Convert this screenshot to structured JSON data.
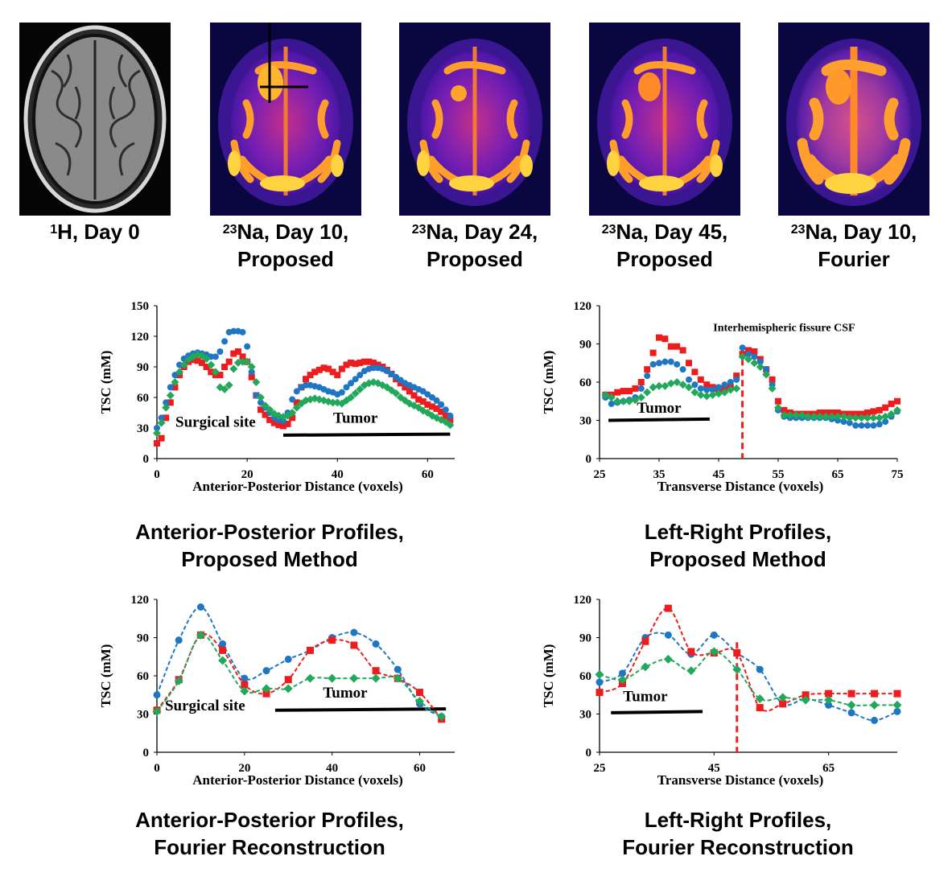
{
  "images": [
    {
      "nucleus": "1",
      "rest": "H, Day 0",
      "line2": ""
    },
    {
      "nucleus": "23",
      "rest": "Na, Day 10,",
      "line2": "Proposed"
    },
    {
      "nucleus": "23",
      "rest": "Na, Day 24,",
      "line2": "Proposed"
    },
    {
      "nucleus": "23",
      "rest": "Na, Day 45,",
      "line2": "Proposed"
    },
    {
      "nucleus": "23",
      "rest": "Na, Day 10,",
      "line2": "Fourier"
    }
  ],
  "titles": {
    "ap_proposed": [
      "Anterior-Posterior Profiles,",
      "Proposed Method"
    ],
    "lr_proposed": [
      "Left-Right Profiles,",
      "Proposed Method"
    ],
    "ap_fourier": [
      "Anterior-Posterior Profiles,",
      "Fourier Reconstruction"
    ],
    "lr_fourier": [
      "Left-Right Profiles,",
      "Fourier Reconstruction"
    ]
  },
  "colors": {
    "series_red": "#ee1c1c",
    "series_blue": "#1f77c4",
    "series_green": "#22a85a",
    "csf_line": "#e8231f"
  },
  "chart_data": [
    {
      "id": "ap_proposed",
      "type": "scatter",
      "ylabel": "TSC (mM)",
      "xlabel": "Anterior-Posterior Distance (voxels)",
      "xlim": [
        0,
        66
      ],
      "ylim": [
        0,
        150
      ],
      "xticks": [
        0,
        20,
        40,
        60
      ],
      "yticks": [
        0,
        30,
        60,
        90,
        120,
        150
      ],
      "annotations": [
        {
          "text": "Surgical site",
          "x": 13,
          "y": 31
        },
        {
          "text": "Tumor",
          "x": 44,
          "y": 35
        }
      ],
      "bars": [
        {
          "x0": 28,
          "x1": 65,
          "y0": 23,
          "y1": 24
        }
      ],
      "series": [
        {
          "color": "red",
          "marker": "square",
          "x": [
            0,
            1,
            2,
            3,
            4,
            5,
            6,
            7,
            8,
            9,
            10,
            11,
            12,
            13,
            14,
            15,
            16,
            17,
            18,
            19,
            20,
            21,
            22,
            23,
            24,
            25,
            26,
            27,
            28,
            29,
            30,
            31,
            32,
            33,
            34,
            35,
            36,
            37,
            38,
            39,
            40,
            41,
            42,
            43,
            44,
            45,
            46,
            47,
            48,
            49,
            50,
            51,
            52,
            53,
            54,
            55,
            56,
            57,
            58,
            59,
            60,
            61,
            62,
            63,
            64,
            65
          ],
          "y": [
            15,
            20,
            40,
            55,
            70,
            82,
            90,
            95,
            97,
            96,
            94,
            90,
            85,
            82,
            82,
            90,
            95,
            103,
            105,
            100,
            95,
            80,
            62,
            48,
            43,
            38,
            35,
            33,
            32,
            34,
            40,
            55,
            70,
            78,
            82,
            85,
            87,
            89,
            88,
            85,
            82,
            88,
            92,
            94,
            93,
            94,
            95,
            95,
            94,
            92,
            90,
            87,
            83,
            78,
            74,
            70,
            66,
            62,
            58,
            56,
            53,
            51,
            49,
            46,
            42,
            38
          ]
        },
        {
          "color": "blue",
          "marker": "circle",
          "x": [
            0,
            1,
            2,
            3,
            4,
            5,
            6,
            7,
            8,
            9,
            10,
            11,
            12,
            13,
            14,
            15,
            16,
            17,
            18,
            19,
            20,
            21,
            22,
            23,
            24,
            25,
            26,
            27,
            28,
            29,
            30,
            31,
            32,
            33,
            34,
            35,
            36,
            37,
            38,
            39,
            40,
            41,
            42,
            43,
            44,
            45,
            46,
            47,
            48,
            49,
            50,
            51,
            52,
            53,
            54,
            55,
            56,
            57,
            58,
            59,
            60,
            61,
            62,
            63,
            64,
            65
          ],
          "y": [
            30,
            40,
            55,
            70,
            82,
            92,
            98,
            101,
            103,
            104,
            103,
            102,
            100,
            100,
            105,
            115,
            124,
            125,
            125,
            124,
            110,
            85,
            62,
            55,
            50,
            45,
            40,
            38,
            37,
            45,
            58,
            66,
            70,
            72,
            72,
            71,
            70,
            68,
            66,
            65,
            63,
            65,
            70,
            74,
            78,
            82,
            86,
            88,
            89,
            89,
            88,
            86,
            83,
            80,
            77,
            74,
            72,
            70,
            68,
            66,
            63,
            60,
            57,
            53,
            48,
            42
          ]
        },
        {
          "color": "green",
          "marker": "diamond",
          "x": [
            0,
            1,
            2,
            3,
            4,
            5,
            6,
            7,
            8,
            9,
            10,
            11,
            12,
            13,
            14,
            15,
            16,
            17,
            18,
            19,
            20,
            21,
            22,
            23,
            24,
            25,
            26,
            27,
            28,
            29,
            30,
            31,
            32,
            33,
            34,
            35,
            36,
            37,
            38,
            39,
            40,
            41,
            42,
            43,
            44,
            45,
            46,
            47,
            48,
            49,
            50,
            51,
            52,
            53,
            54,
            55,
            56,
            57,
            58,
            59,
            60,
            61,
            62,
            63,
            64,
            65
          ],
          "y": [
            25,
            35,
            50,
            62,
            75,
            85,
            92,
            97,
            100,
            102,
            101,
            98,
            92,
            85,
            70,
            68,
            72,
            88,
            94,
            95,
            95,
            90,
            75,
            60,
            52,
            48,
            44,
            42,
            41,
            42,
            45,
            50,
            54,
            57,
            58,
            59,
            58,
            57,
            56,
            55,
            55,
            54,
            57,
            60,
            64,
            68,
            72,
            74,
            75,
            74,
            72,
            70,
            67,
            64,
            60,
            57,
            54,
            52,
            50,
            47,
            45,
            42,
            40,
            38,
            36,
            33
          ]
        }
      ]
    },
    {
      "id": "lr_proposed",
      "type": "scatter",
      "ylabel": "TSC (mM)",
      "xlabel": "Transverse Distance (voxels)",
      "xlim": [
        25,
        75
      ],
      "ylim": [
        0,
        120
      ],
      "xticks": [
        25,
        35,
        45,
        55,
        65,
        75
      ],
      "yticks": [
        0,
        30,
        60,
        90,
        120
      ],
      "annotations": [
        {
          "text": "Tumor",
          "x": 35,
          "y": 36
        },
        {
          "text": "Interhemispheric fissure CSF",
          "x": 56,
          "y": 100
        }
      ],
      "bars": [
        {
          "x0": 26.5,
          "x1": 43.5,
          "y0": 30,
          "y1": 31
        }
      ],
      "vline": {
        "x": 49
      },
      "series": [
        {
          "color": "red",
          "marker": "square",
          "x": [
            26,
            27,
            28,
            29,
            30,
            31,
            32,
            33,
            34,
            35,
            36,
            37,
            38,
            39,
            40,
            41,
            42,
            43,
            44,
            45,
            46,
            47,
            48,
            49,
            50,
            51,
            52,
            53,
            54,
            55,
            56,
            57,
            58,
            59,
            60,
            61,
            62,
            63,
            64,
            65,
            66,
            67,
            68,
            69,
            70,
            71,
            72,
            73,
            74,
            75
          ],
          "y": [
            50,
            50,
            52,
            53,
            53,
            55,
            60,
            70,
            83,
            95,
            94,
            88,
            88,
            85,
            75,
            68,
            62,
            58,
            56,
            54,
            55,
            56,
            65,
            82,
            85,
            84,
            78,
            70,
            62,
            45,
            38,
            36,
            35,
            35,
            35,
            35,
            36,
            36,
            36,
            36,
            35,
            35,
            35,
            35,
            36,
            37,
            38,
            40,
            43,
            45
          ]
        },
        {
          "color": "blue",
          "marker": "circle",
          "x": [
            26,
            27,
            28,
            29,
            30,
            31,
            32,
            33,
            34,
            35,
            36,
            37,
            38,
            39,
            40,
            41,
            42,
            43,
            44,
            45,
            46,
            47,
            48,
            49,
            50,
            51,
            52,
            53,
            54,
            55,
            56,
            57,
            58,
            59,
            60,
            61,
            62,
            63,
            64,
            65,
            66,
            67,
            68,
            69,
            70,
            71,
            72,
            73,
            74,
            75
          ],
          "y": [
            48,
            43,
            44,
            45,
            46,
            48,
            55,
            65,
            74,
            75,
            76,
            76,
            74,
            70,
            62,
            58,
            55,
            54,
            54,
            56,
            58,
            60,
            62,
            87,
            82,
            80,
            76,
            70,
            58,
            38,
            33,
            32,
            32,
            32,
            32,
            32,
            32,
            32,
            31,
            30,
            29,
            28,
            26,
            26,
            26,
            26,
            27,
            29,
            33,
            37
          ]
        },
        {
          "color": "green",
          "marker": "diamond",
          "x": [
            26,
            27,
            28,
            29,
            30,
            31,
            32,
            33,
            34,
            35,
            36,
            37,
            38,
            39,
            40,
            41,
            42,
            43,
            44,
            45,
            46,
            47,
            48,
            49,
            50,
            51,
            52,
            53,
            54,
            55,
            56,
            57,
            58,
            59,
            60,
            61,
            62,
            63,
            64,
            65,
            66,
            67,
            68,
            69,
            70,
            71,
            72,
            73,
            74,
            75
          ],
          "y": [
            50,
            48,
            45,
            45,
            45,
            46,
            48,
            52,
            56,
            57,
            57,
            59,
            60,
            58,
            56,
            52,
            50,
            49,
            50,
            51,
            52,
            54,
            55,
            80,
            78,
            75,
            72,
            66,
            55,
            40,
            34,
            34,
            34,
            34,
            33,
            33,
            33,
            33,
            33,
            33,
            33,
            32,
            32,
            32,
            32,
            32,
            32,
            33,
            35,
            38
          ]
        }
      ]
    },
    {
      "id": "ap_fourier",
      "type": "line",
      "ylabel": "TSC (mM)",
      "xlabel": "Anterior-Posterior Distance (voxels)",
      "xlim": [
        0,
        68
      ],
      "ylim": [
        0,
        120
      ],
      "xticks": [
        0,
        20,
        40,
        60
      ],
      "yticks": [
        0,
        30,
        60,
        90,
        120
      ],
      "annotations": [
        {
          "text": "Surgical site",
          "x": 11,
          "y": 33
        },
        {
          "text": "Tumor",
          "x": 43,
          "y": 43
        }
      ],
      "bars": [
        {
          "x0": 27,
          "x1": 66,
          "y0": 33,
          "y1": 34
        }
      ],
      "series": [
        {
          "color": "blue",
          "marker": "circle",
          "x": [
            0,
            5,
            10,
            15,
            20,
            25,
            30,
            35,
            40,
            45,
            50,
            55,
            60,
            65
          ],
          "y": [
            45,
            88,
            114,
            85,
            58,
            64,
            73,
            80,
            90,
            94,
            85,
            65,
            38,
            28
          ]
        },
        {
          "color": "red",
          "marker": "square",
          "x": [
            0,
            5,
            10,
            15,
            20,
            25,
            30,
            35,
            40,
            45,
            50,
            55,
            60,
            65
          ],
          "y": [
            33,
            57,
            92,
            80,
            53,
            46,
            57,
            80,
            88,
            84,
            64,
            58,
            47,
            26
          ]
        },
        {
          "color": "green",
          "marker": "diamond",
          "x": [
            0,
            5,
            10,
            15,
            20,
            25,
            30,
            35,
            40,
            45,
            50,
            55,
            60,
            65
          ],
          "y": [
            32,
            56,
            92,
            72,
            48,
            50,
            50,
            58,
            58,
            58,
            58,
            58,
            40,
            28
          ]
        }
      ]
    },
    {
      "id": "lr_fourier",
      "type": "line",
      "ylabel": "TSC (mM)",
      "xlabel": "Transverse Distance (voxels)",
      "xlim": [
        25,
        77
      ],
      "ylim": [
        0,
        120
      ],
      "xticks": [
        25,
        45,
        65
      ],
      "yticks": [
        0,
        30,
        60,
        90,
        120
      ],
      "annotations": [
        {
          "text": "Tumor",
          "x": 33,
          "y": 40
        }
      ],
      "bars": [
        {
          "x0": 27,
          "x1": 43,
          "y0": 31,
          "y1": 32
        }
      ],
      "vline": {
        "x": 49
      },
      "series": [
        {
          "color": "blue",
          "marker": "circle",
          "x": [
            25,
            29,
            33,
            37,
            41,
            45,
            49,
            53,
            57,
            61,
            65,
            69,
            73,
            77
          ],
          "y": [
            55,
            62,
            90,
            92,
            77,
            92,
            78,
            65,
            38,
            42,
            37,
            31,
            25,
            32
          ]
        },
        {
          "color": "red",
          "marker": "square",
          "x": [
            25,
            29,
            33,
            37,
            41,
            45,
            49,
            53,
            57,
            61,
            65,
            69,
            73,
            77
          ],
          "y": [
            47,
            54,
            87,
            113,
            79,
            78,
            78,
            35,
            38,
            45,
            46,
            46,
            46,
            46
          ]
        },
        {
          "color": "green",
          "marker": "diamond",
          "x": [
            25,
            29,
            33,
            37,
            41,
            45,
            49,
            53,
            57,
            61,
            65,
            69,
            73,
            77
          ],
          "y": [
            61,
            57,
            67,
            73,
            64,
            79,
            65,
            42,
            43,
            41,
            41,
            37,
            37,
            37
          ]
        }
      ]
    }
  ]
}
